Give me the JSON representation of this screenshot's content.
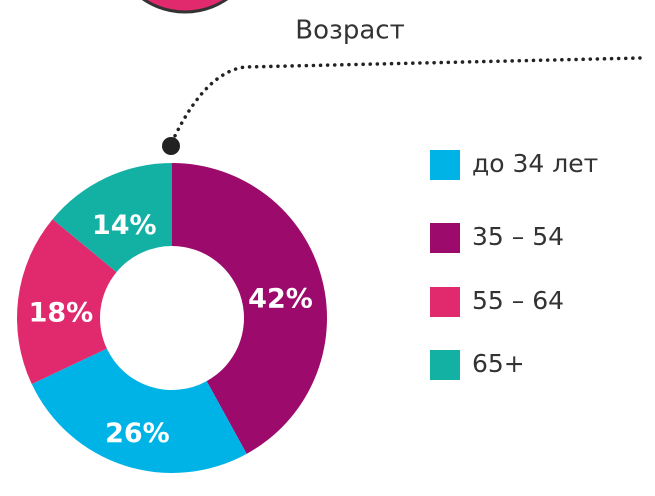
{
  "chart_data": {
    "type": "pie",
    "title": "Возраст",
    "categories": [
      "до 34 лет",
      "35 – 54",
      "55 – 64",
      "65+"
    ],
    "values": [
      26,
      42,
      18,
      14
    ],
    "value_labels": [
      "26%",
      "42%",
      "18%",
      "14%"
    ],
    "colors": [
      "#00b3e6",
      "#9c0a6c",
      "#e12a6e",
      "#13b1a4"
    ],
    "legend": "right"
  }
}
